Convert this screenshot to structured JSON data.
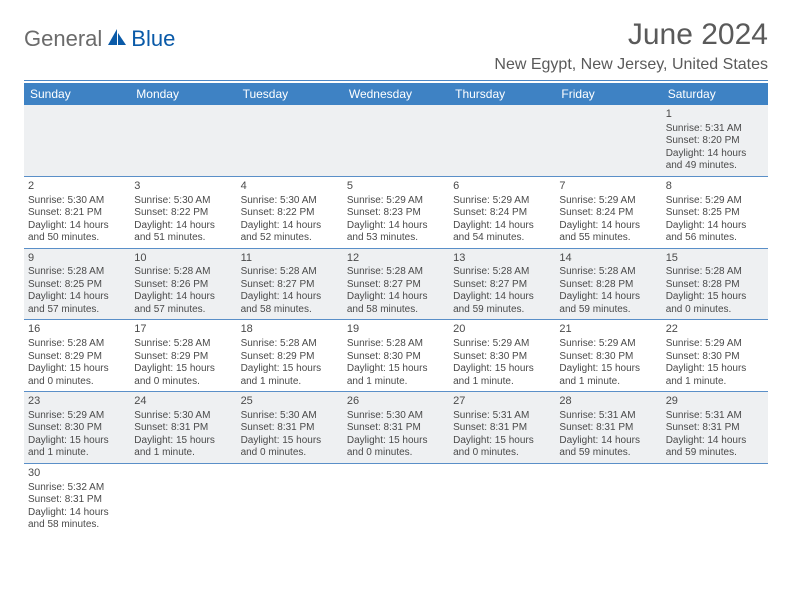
{
  "logo": {
    "grey": "General",
    "blue": "Blue"
  },
  "title": "June 2024",
  "location": "New Egypt, New Jersey, United States",
  "colors": {
    "header_bg": "#3e82c4",
    "header_text": "#ffffff",
    "row_alt": "#eef0f2",
    "border": "#5a8fc8",
    "title_color": "#5a5a5a",
    "body_text": "#4a4a4a",
    "logo_grey": "#6b6b6b",
    "logo_blue": "#0a5aa8"
  },
  "typography": {
    "title_fontsize": 30,
    "location_fontsize": 16,
    "dayheader_fontsize": 12,
    "cell_fontsize": 10
  },
  "day_headers": [
    "Sunday",
    "Monday",
    "Tuesday",
    "Wednesday",
    "Thursday",
    "Friday",
    "Saturday"
  ],
  "weeks": [
    [
      null,
      null,
      null,
      null,
      null,
      null,
      {
        "n": "1",
        "sr": "Sunrise: 5:31 AM",
        "ss": "Sunset: 8:20 PM",
        "d1": "Daylight: 14 hours",
        "d2": "and 49 minutes."
      }
    ],
    [
      {
        "n": "2",
        "sr": "Sunrise: 5:30 AM",
        "ss": "Sunset: 8:21 PM",
        "d1": "Daylight: 14 hours",
        "d2": "and 50 minutes."
      },
      {
        "n": "3",
        "sr": "Sunrise: 5:30 AM",
        "ss": "Sunset: 8:22 PM",
        "d1": "Daylight: 14 hours",
        "d2": "and 51 minutes."
      },
      {
        "n": "4",
        "sr": "Sunrise: 5:30 AM",
        "ss": "Sunset: 8:22 PM",
        "d1": "Daylight: 14 hours",
        "d2": "and 52 minutes."
      },
      {
        "n": "5",
        "sr": "Sunrise: 5:29 AM",
        "ss": "Sunset: 8:23 PM",
        "d1": "Daylight: 14 hours",
        "d2": "and 53 minutes."
      },
      {
        "n": "6",
        "sr": "Sunrise: 5:29 AM",
        "ss": "Sunset: 8:24 PM",
        "d1": "Daylight: 14 hours",
        "d2": "and 54 minutes."
      },
      {
        "n": "7",
        "sr": "Sunrise: 5:29 AM",
        "ss": "Sunset: 8:24 PM",
        "d1": "Daylight: 14 hours",
        "d2": "and 55 minutes."
      },
      {
        "n": "8",
        "sr": "Sunrise: 5:29 AM",
        "ss": "Sunset: 8:25 PM",
        "d1": "Daylight: 14 hours",
        "d2": "and 56 minutes."
      }
    ],
    [
      {
        "n": "9",
        "sr": "Sunrise: 5:28 AM",
        "ss": "Sunset: 8:25 PM",
        "d1": "Daylight: 14 hours",
        "d2": "and 57 minutes."
      },
      {
        "n": "10",
        "sr": "Sunrise: 5:28 AM",
        "ss": "Sunset: 8:26 PM",
        "d1": "Daylight: 14 hours",
        "d2": "and 57 minutes."
      },
      {
        "n": "11",
        "sr": "Sunrise: 5:28 AM",
        "ss": "Sunset: 8:27 PM",
        "d1": "Daylight: 14 hours",
        "d2": "and 58 minutes."
      },
      {
        "n": "12",
        "sr": "Sunrise: 5:28 AM",
        "ss": "Sunset: 8:27 PM",
        "d1": "Daylight: 14 hours",
        "d2": "and 58 minutes."
      },
      {
        "n": "13",
        "sr": "Sunrise: 5:28 AM",
        "ss": "Sunset: 8:27 PM",
        "d1": "Daylight: 14 hours",
        "d2": "and 59 minutes."
      },
      {
        "n": "14",
        "sr": "Sunrise: 5:28 AM",
        "ss": "Sunset: 8:28 PM",
        "d1": "Daylight: 14 hours",
        "d2": "and 59 minutes."
      },
      {
        "n": "15",
        "sr": "Sunrise: 5:28 AM",
        "ss": "Sunset: 8:28 PM",
        "d1": "Daylight: 15 hours",
        "d2": "and 0 minutes."
      }
    ],
    [
      {
        "n": "16",
        "sr": "Sunrise: 5:28 AM",
        "ss": "Sunset: 8:29 PM",
        "d1": "Daylight: 15 hours",
        "d2": "and 0 minutes."
      },
      {
        "n": "17",
        "sr": "Sunrise: 5:28 AM",
        "ss": "Sunset: 8:29 PM",
        "d1": "Daylight: 15 hours",
        "d2": "and 0 minutes."
      },
      {
        "n": "18",
        "sr": "Sunrise: 5:28 AM",
        "ss": "Sunset: 8:29 PM",
        "d1": "Daylight: 15 hours",
        "d2": "and 1 minute."
      },
      {
        "n": "19",
        "sr": "Sunrise: 5:28 AM",
        "ss": "Sunset: 8:30 PM",
        "d1": "Daylight: 15 hours",
        "d2": "and 1 minute."
      },
      {
        "n": "20",
        "sr": "Sunrise: 5:29 AM",
        "ss": "Sunset: 8:30 PM",
        "d1": "Daylight: 15 hours",
        "d2": "and 1 minute."
      },
      {
        "n": "21",
        "sr": "Sunrise: 5:29 AM",
        "ss": "Sunset: 8:30 PM",
        "d1": "Daylight: 15 hours",
        "d2": "and 1 minute."
      },
      {
        "n": "22",
        "sr": "Sunrise: 5:29 AM",
        "ss": "Sunset: 8:30 PM",
        "d1": "Daylight: 15 hours",
        "d2": "and 1 minute."
      }
    ],
    [
      {
        "n": "23",
        "sr": "Sunrise: 5:29 AM",
        "ss": "Sunset: 8:30 PM",
        "d1": "Daylight: 15 hours",
        "d2": "and 1 minute."
      },
      {
        "n": "24",
        "sr": "Sunrise: 5:30 AM",
        "ss": "Sunset: 8:31 PM",
        "d1": "Daylight: 15 hours",
        "d2": "and 1 minute."
      },
      {
        "n": "25",
        "sr": "Sunrise: 5:30 AM",
        "ss": "Sunset: 8:31 PM",
        "d1": "Daylight: 15 hours",
        "d2": "and 0 minutes."
      },
      {
        "n": "26",
        "sr": "Sunrise: 5:30 AM",
        "ss": "Sunset: 8:31 PM",
        "d1": "Daylight: 15 hours",
        "d2": "and 0 minutes."
      },
      {
        "n": "27",
        "sr": "Sunrise: 5:31 AM",
        "ss": "Sunset: 8:31 PM",
        "d1": "Daylight: 15 hours",
        "d2": "and 0 minutes."
      },
      {
        "n": "28",
        "sr": "Sunrise: 5:31 AM",
        "ss": "Sunset: 8:31 PM",
        "d1": "Daylight: 14 hours",
        "d2": "and 59 minutes."
      },
      {
        "n": "29",
        "sr": "Sunrise: 5:31 AM",
        "ss": "Sunset: 8:31 PM",
        "d1": "Daylight: 14 hours",
        "d2": "and 59 minutes."
      }
    ],
    [
      {
        "n": "30",
        "sr": "Sunrise: 5:32 AM",
        "ss": "Sunset: 8:31 PM",
        "d1": "Daylight: 14 hours",
        "d2": "and 58 minutes."
      },
      null,
      null,
      null,
      null,
      null,
      null
    ]
  ]
}
